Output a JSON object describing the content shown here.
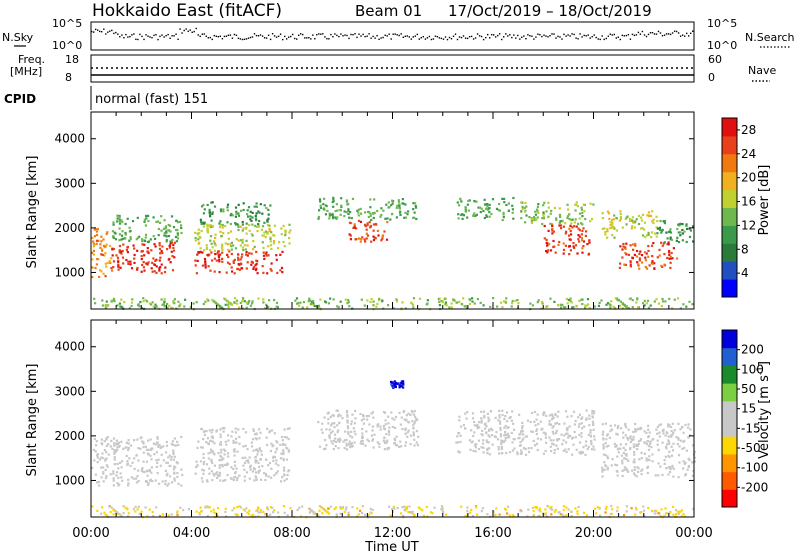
{
  "header": {
    "title": "Hokkaido East (fitACF)",
    "beam": "Beam 01",
    "date_range": "17/Oct/2019 – 18/Oct/2019"
  },
  "panels": {
    "nsky_label": "N.Sky",
    "nsky_ticks": [
      "10^5",
      "10^0"
    ],
    "nsearch_label": "N.Search",
    "nsearch_ticks": [
      "10^5",
      "10^0"
    ],
    "freq_label": "Freq.",
    "freq_unit": "[MHz]",
    "freq_ticks": [
      "18",
      "8"
    ],
    "nave_label": "Nave",
    "nave_ticks": [
      "60",
      "0"
    ],
    "cpid_label": "CPID",
    "cpid_value": "normal (fast) 151"
  },
  "colors": {
    "power": [
      "#0000ff",
      "#2050c0",
      "#2a7a3a",
      "#3b9a4a",
      "#6fb850",
      "#bfd030",
      "#f0b020",
      "#f07a10",
      "#e8401a",
      "#e01010"
    ],
    "velocity": [
      "#ff0000",
      "#ff5a00",
      "#ff9600",
      "#ffd700",
      "#c8c8c8",
      "#c8c8c8",
      "#7ad040",
      "#1a8a2a",
      "#2060d0",
      "#0000dc"
    ]
  },
  "chart_data": [
    {
      "type": "heatmap",
      "name": "power",
      "ylabel": "Slant Range [km]",
      "xlabel": "Time UT",
      "x_ticks": [
        "00:00",
        "04:00",
        "08:00",
        "12:00",
        "16:00",
        "20:00",
        "00:00"
      ],
      "y_ticks": [
        1000,
        2000,
        3000,
        4000
      ],
      "ylim": [
        180,
        4600
      ],
      "xlim_hours": [
        0,
        24
      ],
      "colorbar": {
        "label": "Power [dB]",
        "ticks": [
          4,
          8,
          12,
          16,
          20,
          24,
          28
        ],
        "range": [
          0,
          30
        ]
      },
      "regions": [
        {
          "h0": 0.0,
          "h1": 0.8,
          "r0": 900,
          "r1": 2000,
          "value": 22
        },
        {
          "h0": 0.8,
          "h1": 3.3,
          "r0": 1000,
          "r1": 1700,
          "value": 27
        },
        {
          "h0": 0.8,
          "h1": 3.6,
          "r0": 1700,
          "r1": 2300,
          "value": 12
        },
        {
          "h0": 4.1,
          "h1": 7.6,
          "r0": 1000,
          "r1": 1500,
          "value": 27
        },
        {
          "h0": 4.1,
          "h1": 7.9,
          "r0": 1500,
          "r1": 2100,
          "value": 16
        },
        {
          "h0": 4.3,
          "h1": 7.1,
          "r0": 2100,
          "r1": 2600,
          "value": 10
        },
        {
          "h0": 9.0,
          "h1": 13.0,
          "r0": 2200,
          "r1": 2700,
          "value": 12
        },
        {
          "h0": 10.2,
          "h1": 11.8,
          "r0": 1700,
          "r1": 2200,
          "value": 25
        },
        {
          "h0": 14.5,
          "h1": 16.8,
          "r0": 2200,
          "r1": 2700,
          "value": 12
        },
        {
          "h0": 17.0,
          "h1": 20.0,
          "r0": 2100,
          "r1": 2600,
          "value": 14
        },
        {
          "h0": 18.0,
          "h1": 19.8,
          "r0": 1400,
          "r1": 2100,
          "value": 26
        },
        {
          "h0": 20.3,
          "h1": 22.5,
          "r0": 1800,
          "r1": 2400,
          "value": 16
        },
        {
          "h0": 21.0,
          "h1": 23.3,
          "r0": 1100,
          "r1": 1700,
          "value": 26
        },
        {
          "h0": 22.5,
          "h1": 24.0,
          "r0": 1700,
          "r1": 2200,
          "value": 10
        },
        {
          "h0": 0.0,
          "h1": 24.0,
          "r0": 200,
          "r1": 450,
          "value": 14
        }
      ]
    },
    {
      "type": "heatmap",
      "name": "velocity",
      "ylabel": "Slant Range [km]",
      "xlabel": "Time UT",
      "x_ticks": [
        "00:00",
        "04:00",
        "08:00",
        "12:00",
        "16:00",
        "20:00",
        "00:00"
      ],
      "y_ticks": [
        1000,
        2000,
        3000,
        4000
      ],
      "ylim": [
        180,
        4600
      ],
      "colorbar": {
        "label": "Velocity [m s^-1]",
        "ticks": [
          200,
          100,
          50,
          15,
          -15,
          -50,
          -100,
          -200
        ],
        "range": [
          -250,
          250
        ]
      },
      "regions": [
        {
          "h0": 0.0,
          "h1": 3.6,
          "r0": 900,
          "r1": 2000,
          "value": 0
        },
        {
          "h0": 4.1,
          "h1": 7.9,
          "r0": 1000,
          "r1": 2200,
          "value": 0
        },
        {
          "h0": 9.0,
          "h1": 13.0,
          "r0": 1700,
          "r1": 2600,
          "value": 0
        },
        {
          "h0": 11.9,
          "h1": 12.4,
          "r0": 3100,
          "r1": 3250,
          "value": 220
        },
        {
          "h0": 14.5,
          "h1": 20.0,
          "r0": 1600,
          "r1": 2600,
          "value": 0
        },
        {
          "h0": 20.3,
          "h1": 24.0,
          "r0": 1100,
          "r1": 2300,
          "value": 0
        },
        {
          "h0": 0.0,
          "h1": 24.0,
          "r0": 200,
          "r1": 450,
          "value": -60
        }
      ]
    }
  ]
}
